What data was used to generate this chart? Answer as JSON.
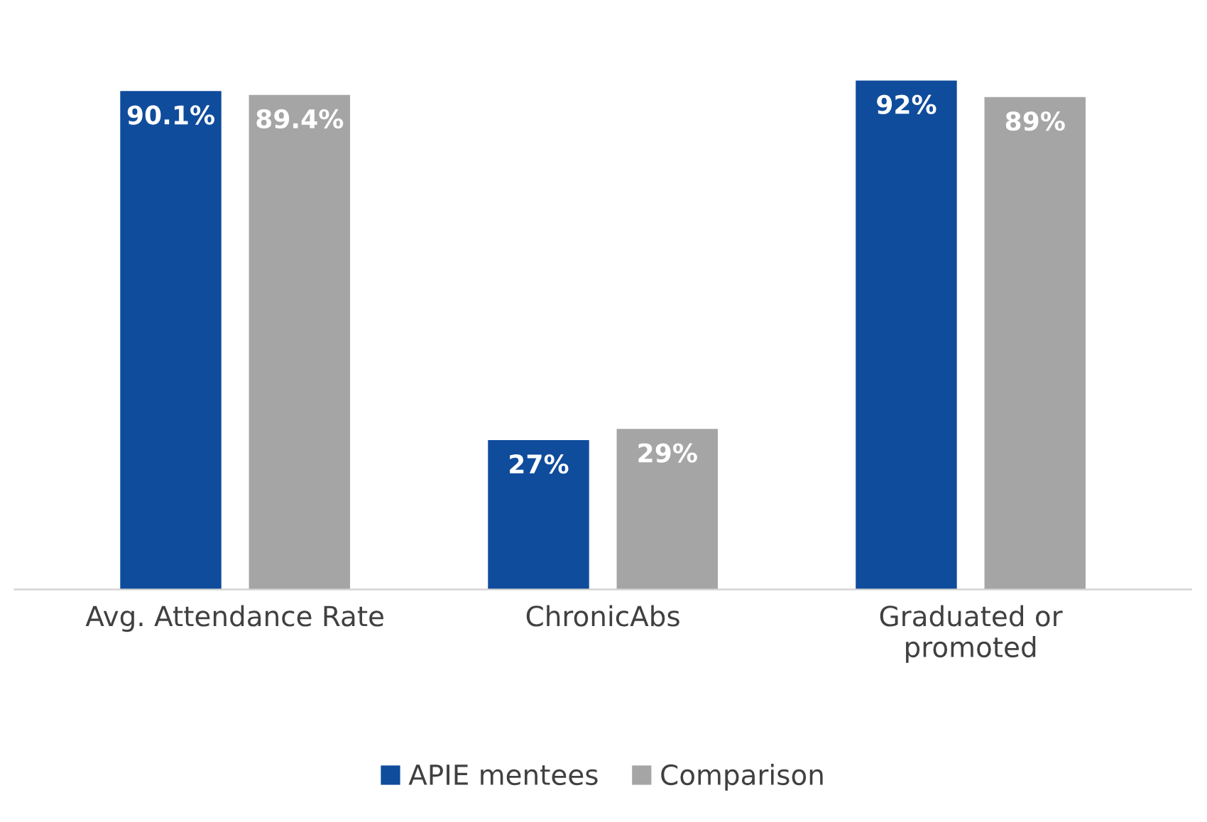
{
  "chart_data": {
    "type": "bar",
    "categories": [
      "Avg. Attendance Rate",
      "ChronicAbs",
      "Graduated or\npromoted"
    ],
    "series": [
      {
        "name": "APIE mentees",
        "color": "#0f4c9c",
        "values": [
          90.1,
          27,
          92
        ],
        "value_labels": [
          "90.1%",
          "27%",
          "92%"
        ]
      },
      {
        "name": "Comparison",
        "color": "#a5a5a5",
        "values": [
          89.4,
          29,
          89
        ],
        "value_labels": [
          "89.4%",
          "29%",
          "89%"
        ]
      }
    ],
    "tick_labels": "x",
    "grid": false,
    "legend": "bottom"
  }
}
